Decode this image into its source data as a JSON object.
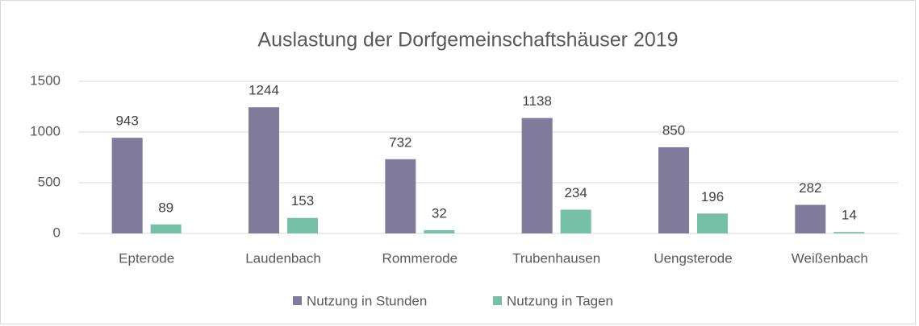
{
  "chart_data": {
    "type": "bar",
    "title": "Auslastung der Dorfgemeinschaftshäuser 2019",
    "categories": [
      "Epterode",
      "Laudenbach",
      "Rommerode",
      "Trubenhausen",
      "Uengsterode",
      "Weißenbach"
    ],
    "series": [
      {
        "name": "Nutzung in Stunden",
        "color": "#807b9b",
        "values": [
          943,
          1244,
          732,
          1138,
          850,
          282
        ]
      },
      {
        "name": "Nutzung in Tagen",
        "color": "#76c0a8",
        "values": [
          89,
          153,
          32,
          234,
          196,
          14
        ]
      }
    ],
    "ylim": [
      0,
      1500
    ],
    "yticks": [
      0,
      500,
      1000,
      1500
    ],
    "grid": true,
    "legend": "bottom"
  }
}
